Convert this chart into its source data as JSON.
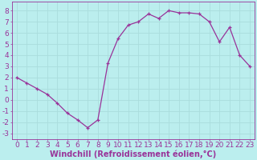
{
  "x": [
    0,
    1,
    2,
    3,
    4,
    5,
    6,
    7,
    8,
    9,
    10,
    11,
    12,
    13,
    14,
    15,
    16,
    17,
    18,
    19,
    20,
    21,
    22,
    23
  ],
  "y": [
    2.0,
    1.5,
    1.0,
    0.5,
    -0.3,
    -1.2,
    -1.8,
    -2.5,
    -1.8,
    3.3,
    5.5,
    6.7,
    7.0,
    7.7,
    7.3,
    8.0,
    7.8,
    7.8,
    7.7,
    7.0,
    5.2,
    6.5,
    4.0,
    3.0
  ],
  "line_color": "#993399",
  "marker": "+",
  "bg_color": "#bbeeee",
  "grid_color": "#aadddd",
  "xlabel": "Windchill (Refroidissement éolien,°C)",
  "xlabel_color": "#993399",
  "tick_color": "#993399",
  "xlim": [
    -0.5,
    23.5
  ],
  "ylim": [
    -3.5,
    8.8
  ],
  "yticks": [
    -3,
    -2,
    -1,
    0,
    1,
    2,
    3,
    4,
    5,
    6,
    7,
    8
  ],
  "xticks": [
    0,
    1,
    2,
    3,
    4,
    5,
    6,
    7,
    8,
    9,
    10,
    11,
    12,
    13,
    14,
    15,
    16,
    17,
    18,
    19,
    20,
    21,
    22,
    23
  ],
  "xlabel_fontsize": 7,
  "tick_fontsize": 6.5
}
